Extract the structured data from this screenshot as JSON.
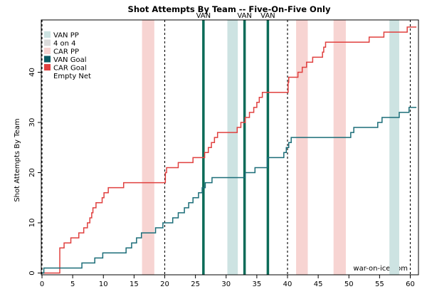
{
  "chart_data": {
    "type": "line",
    "title": "Shot Attempts By Team -- Five-On-Five Only",
    "xlabel": "",
    "ylabel": "Shot Attempts By Team",
    "xlim": [
      0,
      61
    ],
    "ylim": [
      0,
      49
    ],
    "x_ticks": [
      0,
      5,
      10,
      15,
      20,
      25,
      30,
      35,
      40,
      45,
      50,
      55,
      60
    ],
    "y_ticks": [
      0,
      10,
      20,
      30,
      40
    ],
    "legend_position": "top-left",
    "legend": [
      {
        "label": "VAN PP",
        "kind": "band",
        "color": "#cde3e2"
      },
      {
        "label": "4 on 4",
        "kind": "band",
        "color": "#dcdcdc"
      },
      {
        "label": "CAR PP",
        "kind": "band",
        "color": "#f7d4d2"
      },
      {
        "label": "VAN Goal",
        "kind": "band",
        "color": "#0b5a63"
      },
      {
        "label": "CAR Goal",
        "kind": "band",
        "color": "#e0403f"
      },
      {
        "label": "Empty Net",
        "kind": "none",
        "color": "#ffffff"
      }
    ],
    "bands": [
      {
        "type": "CAR PP",
        "start": 16.3,
        "end": 18.3,
        "color": "#f7d4d2"
      },
      {
        "type": "VAN PP",
        "start": 30.2,
        "end": 31.9,
        "color": "#cde3e2"
      },
      {
        "type": "CAR PP",
        "start": 41.4,
        "end": 43.3,
        "color": "#f7d4d2"
      },
      {
        "type": "CAR PP",
        "start": 47.5,
        "end": 49.5,
        "color": "#f7d4d2"
      },
      {
        "type": "VAN PP",
        "start": 56.6,
        "end": 58.2,
        "color": "#cde3e2"
      }
    ],
    "period_lines": [
      0,
      20,
      40,
      60
    ],
    "goals": [
      {
        "team": "VAN",
        "time": 26.3,
        "label": "VAN",
        "color": "#0b6b58"
      },
      {
        "team": "VAN",
        "time": 33.0,
        "label": "VAN",
        "color": "#0b6b58"
      },
      {
        "team": "VAN",
        "time": 36.8,
        "label": "VAN",
        "color": "#0b6b58"
      }
    ],
    "series": [
      {
        "name": "CAR",
        "color": "#e0403f",
        "points": [
          [
            0,
            0
          ],
          [
            2.9,
            0
          ],
          [
            2.9,
            5
          ],
          [
            3.6,
            6
          ],
          [
            4.7,
            7
          ],
          [
            5.3,
            7
          ],
          [
            6.0,
            8
          ],
          [
            6.8,
            9
          ],
          [
            7.4,
            10
          ],
          [
            7.8,
            11
          ],
          [
            8.1,
            12
          ],
          [
            8.3,
            13
          ],
          [
            8.8,
            14
          ],
          [
            9.8,
            15
          ],
          [
            10.1,
            16
          ],
          [
            10.8,
            17
          ],
          [
            13.3,
            18
          ],
          [
            19.9,
            18
          ],
          [
            20.1,
            20
          ],
          [
            20.3,
            21
          ],
          [
            22.2,
            22
          ],
          [
            24.6,
            23
          ],
          [
            26.2,
            23
          ],
          [
            26.5,
            24
          ],
          [
            27.1,
            25
          ],
          [
            27.6,
            26
          ],
          [
            28.1,
            27
          ],
          [
            28.6,
            28
          ],
          [
            31.3,
            28
          ],
          [
            31.8,
            29
          ],
          [
            32.4,
            30
          ],
          [
            33.1,
            31
          ],
          [
            33.8,
            32
          ],
          [
            34.5,
            33
          ],
          [
            35.0,
            34
          ],
          [
            35.4,
            35
          ],
          [
            35.9,
            36
          ],
          [
            39.8,
            36
          ],
          [
            40.1,
            38
          ],
          [
            40.2,
            39
          ],
          [
            41.2,
            39
          ],
          [
            41.7,
            40
          ],
          [
            42.4,
            41
          ],
          [
            43.1,
            42
          ],
          [
            44.1,
            43
          ],
          [
            45.7,
            44
          ],
          [
            45.9,
            45
          ],
          [
            46.2,
            46
          ],
          [
            52.5,
            46
          ],
          [
            53.3,
            47
          ],
          [
            55.0,
            47
          ],
          [
            55.7,
            48
          ],
          [
            59.5,
            48
          ],
          [
            59.5,
            49
          ],
          [
            61,
            49
          ]
        ]
      },
      {
        "name": "VAN",
        "color": "#1b6d78",
        "points": [
          [
            0,
            0
          ],
          [
            0.3,
            1
          ],
          [
            6.4,
            1
          ],
          [
            6.5,
            2
          ],
          [
            8.5,
            2
          ],
          [
            8.6,
            3
          ],
          [
            9.8,
            3
          ],
          [
            9.9,
            4
          ],
          [
            13.5,
            4
          ],
          [
            13.7,
            5
          ],
          [
            14.5,
            5
          ],
          [
            14.6,
            6
          ],
          [
            15.2,
            6
          ],
          [
            15.4,
            7
          ],
          [
            16.1,
            7
          ],
          [
            16.2,
            8
          ],
          [
            18.4,
            8
          ],
          [
            18.5,
            9
          ],
          [
            19.5,
            9
          ],
          [
            19.7,
            10
          ],
          [
            21.2,
            10
          ],
          [
            21.3,
            11
          ],
          [
            22.1,
            11
          ],
          [
            22.2,
            12
          ],
          [
            23.1,
            12
          ],
          [
            23.2,
            13
          ],
          [
            23.8,
            13
          ],
          [
            23.9,
            14
          ],
          [
            24.4,
            14
          ],
          [
            24.6,
            15
          ],
          [
            25.4,
            15
          ],
          [
            25.5,
            16
          ],
          [
            26.0,
            16
          ],
          [
            26.1,
            17
          ],
          [
            26.5,
            17
          ],
          [
            26.6,
            18
          ],
          [
            27.6,
            18
          ],
          [
            27.7,
            19
          ],
          [
            33.0,
            19
          ],
          [
            33.1,
            20
          ],
          [
            34.6,
            20
          ],
          [
            34.7,
            21
          ],
          [
            36.6,
            21
          ],
          [
            36.7,
            23
          ],
          [
            39.3,
            23
          ],
          [
            39.4,
            24
          ],
          [
            39.7,
            24
          ],
          [
            39.8,
            25
          ],
          [
            40.1,
            25
          ],
          [
            40.2,
            26
          ],
          [
            40.5,
            26
          ],
          [
            40.6,
            27
          ],
          [
            50.2,
            27
          ],
          [
            50.3,
            28
          ],
          [
            50.7,
            28
          ],
          [
            50.8,
            29
          ],
          [
            54.6,
            29
          ],
          [
            54.7,
            30
          ],
          [
            55.3,
            30
          ],
          [
            55.4,
            31
          ],
          [
            58.1,
            31
          ],
          [
            58.2,
            32
          ],
          [
            59.8,
            32
          ],
          [
            59.8,
            33
          ],
          [
            61,
            33
          ]
        ]
      }
    ]
  },
  "watermark": "war-on-ice.com"
}
